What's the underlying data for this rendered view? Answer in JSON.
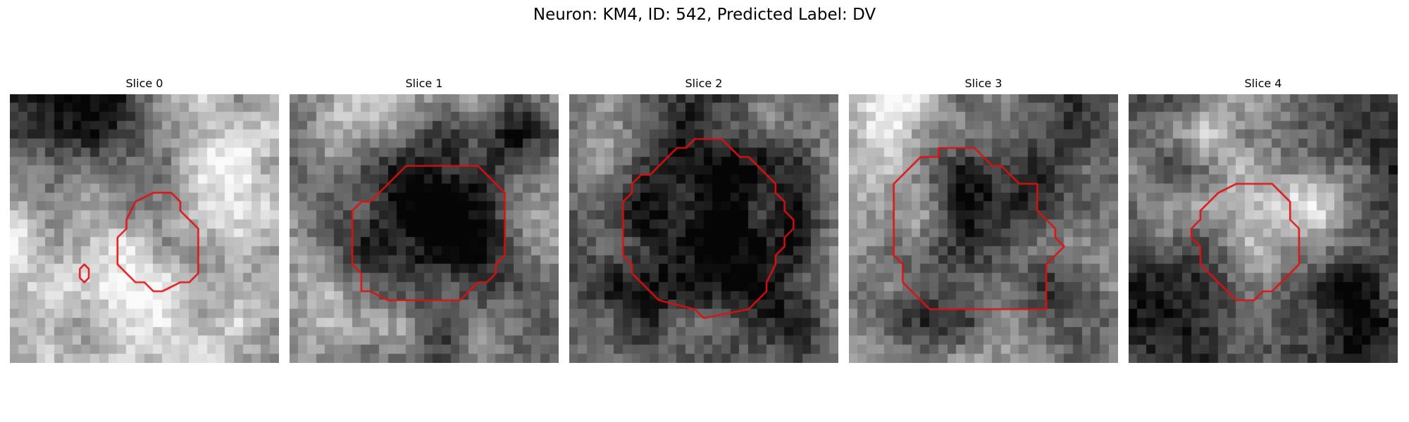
{
  "figure": {
    "suptitle": "Neuron: KM4, ID: 542, Predicted Label: DV"
  },
  "colors": {
    "contour": "#e01010",
    "background": "#ffffff"
  },
  "panels": [
    {
      "title": "Slice 0",
      "seed": 11,
      "base": 0.72,
      "blobs": [
        [
          6,
          1,
          7,
          0.62
        ],
        [
          1.5,
          15,
          3,
          -0.2
        ],
        [
          24,
          7,
          3,
          -0.2
        ],
        [
          9,
          4.2,
          2,
          0.25
        ],
        [
          18,
          11,
          2.5,
          0.12
        ],
        [
          11,
          16,
          3.5,
          -0.1
        ],
        [
          18,
          25,
          4,
          -0.2
        ],
        [
          26,
          19,
          3,
          0.1
        ],
        [
          3,
          5,
          3,
          -0.15
        ]
      ],
      "contours": [
        [
          [
            16,
            11
          ],
          [
            18,
            11
          ],
          [
            19,
            12
          ],
          [
            19,
            13
          ],
          [
            21,
            15
          ],
          [
            21,
            20
          ],
          [
            20,
            21
          ],
          [
            19,
            21
          ],
          [
            17,
            22
          ],
          [
            16,
            22
          ],
          [
            15,
            21
          ],
          [
            14,
            21
          ],
          [
            13,
            20
          ],
          [
            12,
            19
          ],
          [
            12,
            16
          ],
          [
            13,
            15
          ],
          [
            13,
            14
          ],
          [
            14,
            12
          ]
        ],
        [
          [
            8.3,
            19
          ],
          [
            8.8,
            19.5
          ],
          [
            8.8,
            20.5
          ],
          [
            8.3,
            21
          ],
          [
            7.8,
            20.5
          ],
          [
            7.8,
            19.5
          ]
        ]
      ]
    },
    {
      "title": "Slice 1",
      "seed": 23,
      "base": 0.55,
      "blobs": [
        [
          16,
          16,
          8,
          0.55
        ],
        [
          8,
          2,
          4,
          -0.35
        ],
        [
          2,
          22,
          4,
          -0.3
        ],
        [
          25,
          5,
          3,
          0.3
        ],
        [
          3,
          4,
          3,
          0.15
        ],
        [
          22,
          24,
          4,
          -0.2
        ],
        [
          10,
          26,
          3,
          -0.2
        ],
        [
          27,
          14,
          2,
          -0.15
        ]
      ],
      "contours": [
        [
          [
            13,
            8
          ],
          [
            21,
            8
          ],
          [
            24,
            11
          ],
          [
            24,
            18
          ],
          [
            23,
            19
          ],
          [
            23,
            20
          ],
          [
            22,
            21
          ],
          [
            21,
            21
          ],
          [
            19,
            23
          ],
          [
            11,
            23
          ],
          [
            9,
            22
          ],
          [
            8,
            22
          ],
          [
            8,
            20
          ],
          [
            7,
            19
          ],
          [
            7,
            13
          ],
          [
            8,
            12
          ],
          [
            9,
            12
          ],
          [
            10,
            11
          ],
          [
            11,
            10
          ],
          [
            12,
            9
          ]
        ]
      ]
    },
    {
      "title": "Slice 2",
      "seed": 37,
      "base": 0.55,
      "blobs": [
        [
          16,
          15,
          9,
          0.6
        ],
        [
          3,
          5,
          3,
          -0.1
        ],
        [
          26,
          25,
          3,
          0.2
        ],
        [
          22,
          3,
          2,
          -0.3
        ],
        [
          8,
          25,
          3,
          0.1
        ]
      ],
      "contours": [
        [
          [
            11,
            7
          ],
          [
            12,
            6
          ],
          [
            13,
            6
          ],
          [
            14,
            5
          ],
          [
            17,
            5
          ],
          [
            19,
            7
          ],
          [
            20,
            7
          ],
          [
            21,
            8
          ],
          [
            22,
            9
          ],
          [
            23,
            10
          ],
          [
            23,
            11
          ],
          [
            24,
            12
          ],
          [
            24,
            13
          ],
          [
            25,
            14
          ],
          [
            25,
            15
          ],
          [
            24,
            16
          ],
          [
            24,
            17
          ],
          [
            23,
            18
          ],
          [
            23,
            19
          ],
          [
            22,
            21
          ],
          [
            22,
            22
          ],
          [
            21,
            23
          ],
          [
            20,
            24
          ],
          [
            15,
            25
          ],
          [
            14,
            24
          ],
          [
            10,
            23
          ],
          [
            9,
            22
          ],
          [
            8,
            21
          ],
          [
            7,
            20
          ],
          [
            7,
            19
          ],
          [
            6,
            18
          ],
          [
            6,
            12
          ],
          [
            7,
            11
          ],
          [
            7,
            10
          ],
          [
            8,
            9
          ],
          [
            9,
            9
          ],
          [
            10,
            8
          ]
        ]
      ]
    },
    {
      "title": "Slice 3",
      "seed": 41,
      "base": 0.55,
      "blobs": [
        [
          14,
          14,
          7,
          0.4
        ],
        [
          7,
          14,
          3,
          -0.35
        ],
        [
          24,
          5,
          4,
          0.3
        ],
        [
          4,
          2,
          4,
          -0.3
        ],
        [
          12,
          26,
          3,
          0.2
        ],
        [
          26,
          24,
          4,
          0.2
        ],
        [
          20,
          10,
          3,
          0.15
        ]
      ],
      "contours": [
        [
          [
            5,
            10
          ],
          [
            8,
            7
          ],
          [
            10,
            7
          ],
          [
            10,
            6
          ],
          [
            14,
            6
          ],
          [
            16,
            8
          ],
          [
            17,
            8
          ],
          [
            18,
            9
          ],
          [
            19,
            10
          ],
          [
            21,
            10
          ],
          [
            21,
            13
          ],
          [
            23,
            15
          ],
          [
            23,
            16
          ],
          [
            24,
            17
          ],
          [
            23,
            18
          ],
          [
            22,
            19
          ],
          [
            22,
            24
          ],
          [
            15,
            24
          ],
          [
            14,
            24
          ],
          [
            9,
            24
          ],
          [
            8,
            23
          ],
          [
            7,
            22
          ],
          [
            6,
            21
          ],
          [
            6,
            19
          ],
          [
            5,
            18
          ],
          [
            5,
            10
          ]
        ]
      ]
    },
    {
      "title": "Slice 4",
      "seed": 53,
      "base": 0.4,
      "blobs": [
        [
          15,
          13,
          4.5,
          -0.4
        ],
        [
          16,
          20,
          3,
          -0.3
        ],
        [
          11,
          3,
          3.5,
          -0.3
        ],
        [
          20,
          12,
          2.5,
          -0.25
        ],
        [
          27,
          8,
          3,
          0.15
        ],
        [
          24,
          25,
          6,
          0.25
        ],
        [
          4,
          25,
          6,
          0.2
        ],
        [
          3,
          13,
          3,
          -0.15
        ]
      ],
      "contours": [
        [
          [
            12,
            10
          ],
          [
            16,
            10
          ],
          [
            17,
            11
          ],
          [
            18,
            12
          ],
          [
            18,
            14
          ],
          [
            19,
            15
          ],
          [
            19,
            18
          ],
          [
            19,
            19
          ],
          [
            18,
            20
          ],
          [
            17,
            21
          ],
          [
            16,
            22
          ],
          [
            15,
            22
          ],
          [
            14,
            23
          ],
          [
            12,
            23
          ],
          [
            11,
            22
          ],
          [
            10,
            21
          ],
          [
            9,
            20
          ],
          [
            8,
            19
          ],
          [
            8,
            17
          ],
          [
            7,
            16
          ],
          [
            7,
            15
          ],
          [
            8,
            14
          ],
          [
            8,
            13
          ],
          [
            9,
            12
          ],
          [
            10,
            11
          ]
        ]
      ]
    }
  ]
}
